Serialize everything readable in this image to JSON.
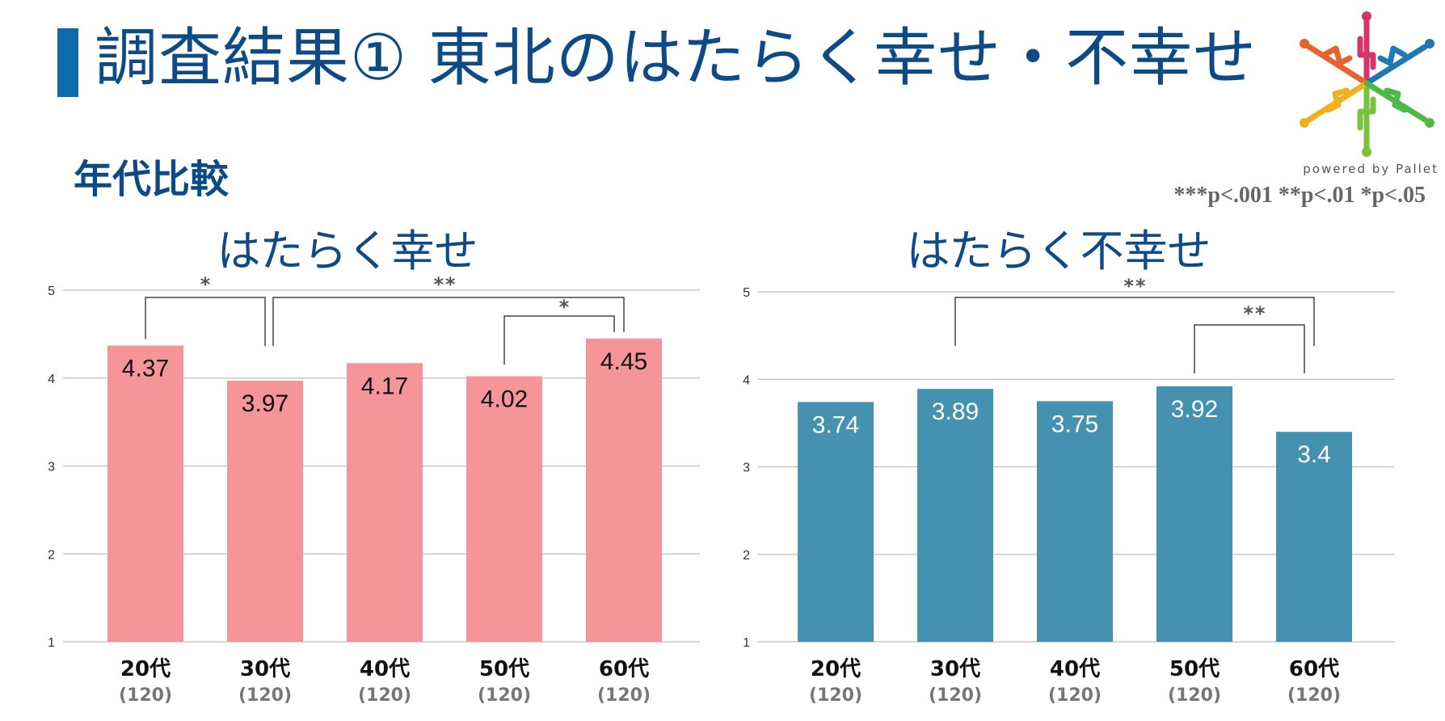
{
  "header": {
    "title": "調査結果① 東北のはたらく幸せ・不幸せ",
    "subtitle": "年代比較",
    "accent_color": "#0f6aad",
    "title_color": "#0d4a86"
  },
  "logo": {
    "icon": "pallet-logo-icon",
    "text": "powered by Pallet"
  },
  "significance_legend": "***p<.001 **p<.01 *p<.05",
  "chart_data": [
    {
      "type": "bar",
      "title": "はたらく幸せ",
      "categories": [
        "20代",
        "30代",
        "40代",
        "50代",
        "60代"
      ],
      "sample_sizes": [
        "(120)",
        "(120)",
        "(120)",
        "(120)",
        "(120)"
      ],
      "series": [
        {
          "values": [
            4.37,
            3.97,
            4.17,
            4.02,
            4.45
          ],
          "color": "#f59597",
          "label_color": "#111111"
        }
      ],
      "ylim": [
        1,
        5
      ],
      "yticks": [
        "1",
        "2",
        "3",
        "4",
        "5"
      ],
      "grid": true,
      "significance": [
        {
          "from": 0,
          "to": 1,
          "label": "*"
        },
        {
          "from": 1,
          "to": 4,
          "label": "**"
        },
        {
          "from": 3,
          "to": 4,
          "label": "*"
        }
      ]
    },
    {
      "type": "bar",
      "title": "はたらく不幸せ",
      "categories": [
        "20代",
        "30代",
        "40代",
        "50代",
        "60代"
      ],
      "sample_sizes": [
        "(120)",
        "(120)",
        "(120)",
        "(120)",
        "(120)"
      ],
      "series": [
        {
          "values": [
            3.74,
            3.89,
            3.75,
            3.92,
            3.4
          ],
          "color": "#4592b0",
          "label_color": "#ffffff"
        }
      ],
      "ylim": [
        1,
        5
      ],
      "yticks": [
        "1",
        "2",
        "3",
        "4",
        "5"
      ],
      "grid": true,
      "significance": [
        {
          "from": 1,
          "to": 4,
          "label": "**"
        },
        {
          "from": 3,
          "to": 4,
          "label": "**"
        }
      ]
    }
  ]
}
